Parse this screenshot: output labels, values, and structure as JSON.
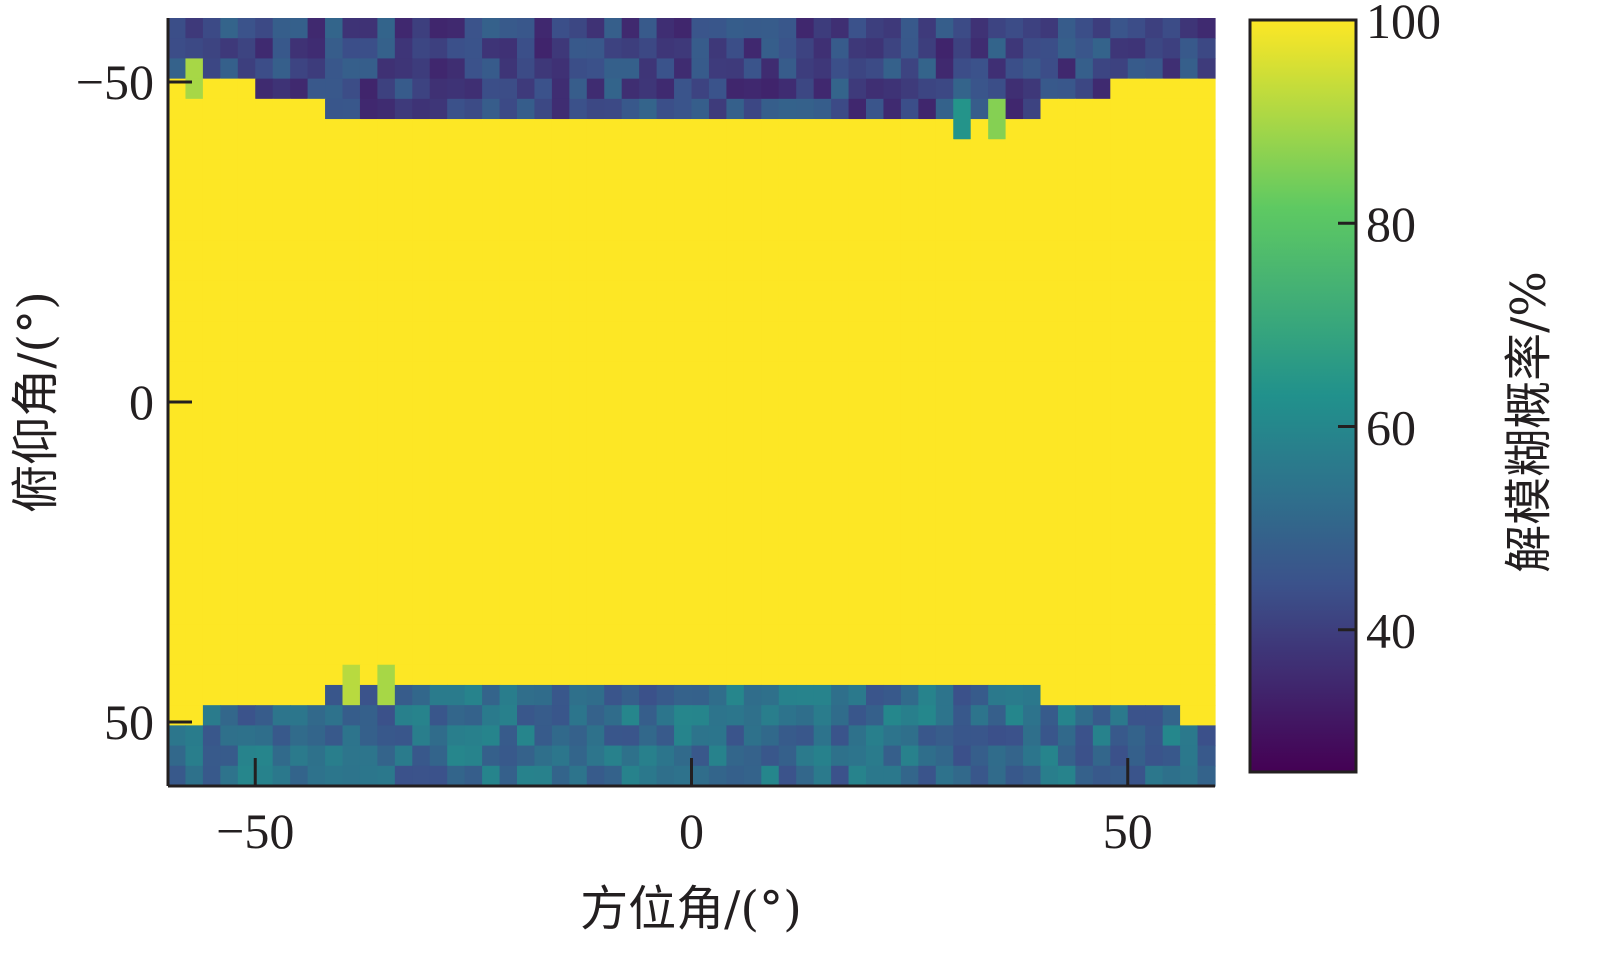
{
  "chart_data": {
    "type": "heatmap",
    "title": "",
    "xlabel": "方位角/(°)",
    "ylabel": "俯仰角/(°)",
    "colorbar_label": "解模糊概率/%",
    "xlim": [
      -60,
      60
    ],
    "ylim": [
      -60,
      60
    ],
    "y_axis_direction": "top-to-bottom increasing",
    "xticks": [
      -50,
      0,
      50
    ],
    "yticks": [
      -50,
      0,
      50
    ],
    "xtick_labels": [
      "−50",
      "0",
      "50"
    ],
    "ytick_labels": [
      "−50",
      "0",
      "50"
    ],
    "colorbar_range": [
      26,
      100
    ],
    "colorbar_ticks": [
      40,
      60,
      80,
      100
    ],
    "colorbar_tick_labels": [
      "40",
      "60",
      "80",
      "100"
    ],
    "colormap": [
      "#440154",
      "#3b528b",
      "#21918c",
      "#5ec962",
      "#fde725"
    ],
    "grid_bins": {
      "x_count": 60,
      "y_count": 38,
      "x_step": 2,
      "y_step": 3.16
    },
    "high_value_region": {
      "value": 100,
      "top_boundary": [
        {
          "x_from": -60,
          "x_to": -56,
          "y": -51
        },
        {
          "x_from": -56,
          "x_to": -49,
          "y": -50
        },
        {
          "x_from": -49,
          "x_to": -41,
          "y": -47
        },
        {
          "x_from": -41,
          "x_to": 41,
          "y": -44
        },
        {
          "x_from": 41,
          "x_to": 49,
          "y": -47
        },
        {
          "x_from": 49,
          "x_to": 56,
          "y": -50
        },
        {
          "x_from": 56,
          "x_to": 60,
          "y": -51
        }
      ],
      "bottom_boundary": [
        {
          "x_from": -60,
          "x_to": -56,
          "y": 50
        },
        {
          "x_from": -56,
          "x_to": -49,
          "y": 48
        },
        {
          "x_from": -49,
          "x_to": -41,
          "y": 46
        },
        {
          "x_from": -41,
          "x_to": 41,
          "y": 43
        },
        {
          "x_from": 41,
          "x_to": 49,
          "y": 46
        },
        {
          "x_from": 49,
          "x_to": 56,
          "y": 48
        },
        {
          "x_from": 56,
          "x_to": 60,
          "y": 50
        }
      ]
    },
    "top_band_mean": 42,
    "bottom_band_mean": 52,
    "hotspots": [
      {
        "x": -57,
        "y": -50,
        "value": 90
      },
      {
        "x": -35,
        "y": 44,
        "value": 90
      },
      {
        "x": -39,
        "y": 44,
        "value": 92
      },
      {
        "x": 31,
        "y": -44,
        "value": 64
      },
      {
        "x": 35,
        "y": -44,
        "value": 86
      }
    ]
  }
}
